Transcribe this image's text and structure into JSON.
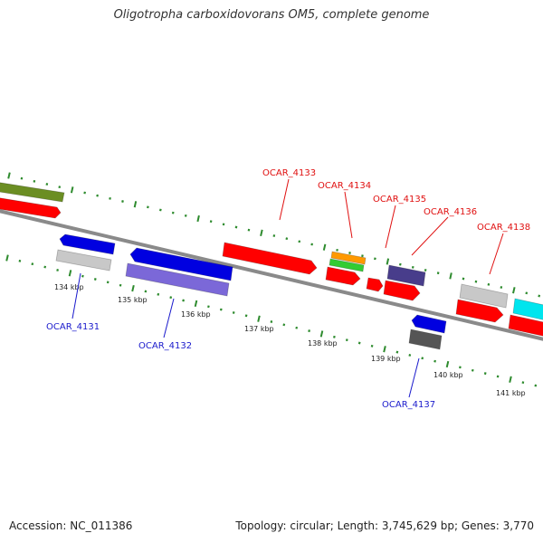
{
  "header": {
    "title": "Oligotropha carboxidovorans OM5, complete genome"
  },
  "footer": {
    "accession": "Accession: NC_011386",
    "summary": "Topology: circular; Length: 3,745,629 bp; Genes: 3,770"
  },
  "ruler_labels": [
    "134 kbp",
    "135 kbp",
    "136 kbp",
    "137 kbp",
    "138 kbp",
    "139 kbp",
    "140 kbp",
    "141 kbp"
  ],
  "gene_labels": {
    "forward": [
      "OCAR_4133",
      "OCAR_4134",
      "OCAR_4135",
      "OCAR_4136",
      "OCAR_4138"
    ],
    "reverse": [
      "OCAR_4131",
      "OCAR_4132",
      "OCAR_4137"
    ]
  },
  "colors": {
    "forward_label": "#e01010",
    "reverse_label": "#1a1acc",
    "red_gene": "#ff0000",
    "blue_gene": "#0000e0",
    "slate_blue_gene": "#7b68d8",
    "gray_gene": "#c8c8c8",
    "dark_gray_gene": "#555555",
    "olive_gene": "#6b8e23",
    "orange_gene": "#ff9900",
    "green_gene": "#33cc33",
    "dark_slate_gene": "#483d8b",
    "cyan_gene": "#00e5ee",
    "backbone": "#8a8a8a",
    "tick": "#2e8b2e"
  }
}
